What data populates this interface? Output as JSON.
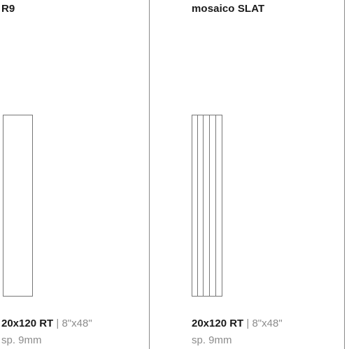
{
  "columns": [
    {
      "title": "R9",
      "size": "20x120 RT",
      "separator": "|",
      "inches": "8\"x48\"",
      "thickness": "sp. 9mm"
    },
    {
      "title": "mosaico SLAT",
      "size": "20x120 RT",
      "separator": "|",
      "inches": "8\"x48\"",
      "thickness": "sp. 9mm"
    }
  ],
  "colors": {
    "divider": "#8a8a8a",
    "tile_outline": "#777777",
    "text_dark": "#1a1a1a",
    "text_light": "#8c8c8c"
  }
}
